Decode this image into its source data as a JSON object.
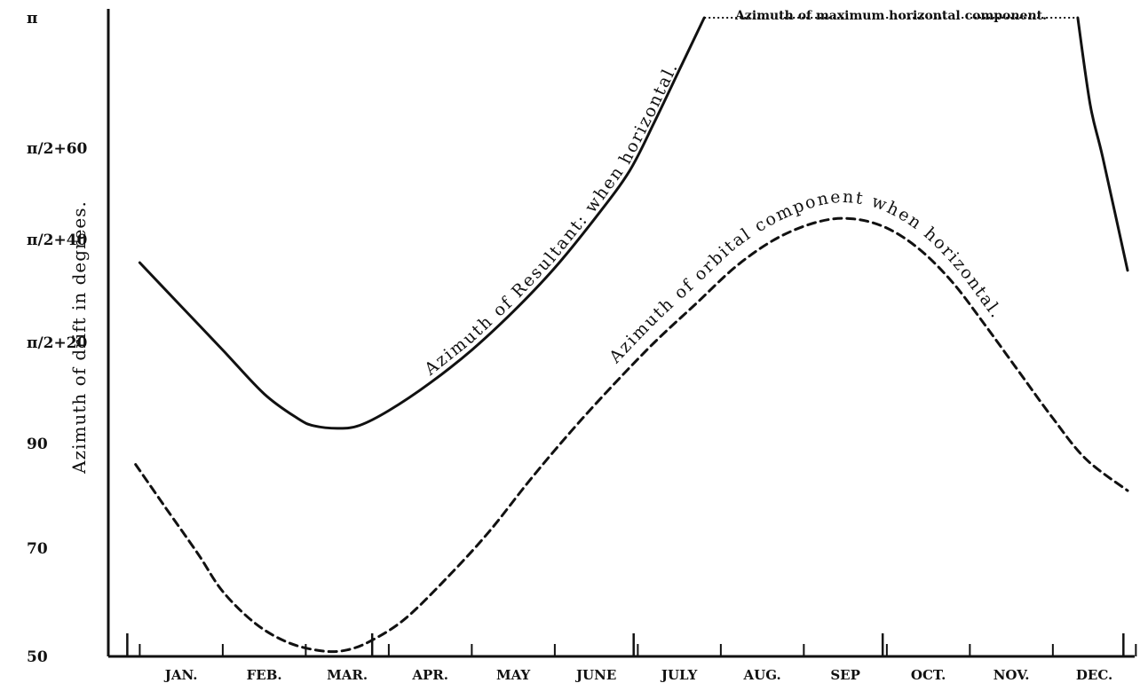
{
  "chart_data": {
    "type": "line",
    "title": "",
    "xlabel": "",
    "ylabel": "Azimuth of drift in degrees.",
    "y_ticks": [
      {
        "value": 50,
        "label": "50"
      },
      {
        "value": 70,
        "label": "70"
      },
      {
        "value": 90,
        "label": "90"
      },
      {
        "value": 110,
        "label": "π/2+20"
      },
      {
        "value": 130,
        "label": "π/2+40"
      },
      {
        "value": 150,
        "label": "π/2+60"
      },
      {
        "value": 180,
        "label": "π"
      }
    ],
    "ylim": [
      50,
      180
    ],
    "xlim": [
      0.6,
      12.9
    ],
    "months": [
      "JAN.",
      "FEB.",
      "MAR.",
      "APR.",
      "MAY",
      "JUNE",
      "JULY",
      "AUG.",
      "SEP",
      "OCT.",
      "NOV.",
      "DEC."
    ],
    "grid": false,
    "series": [
      {
        "name": "Azimuth of Resultant: when horizontal.",
        "style": "solid",
        "color": "#111111",
        "x": [
          1.0,
          1.5,
          2.0,
          2.5,
          2.9,
          3.1,
          3.4,
          3.65,
          4.0,
          4.5,
          5.0,
          5.5,
          6.0,
          6.5,
          6.9,
          7.2,
          7.5,
          7.8
        ],
        "y": [
          125.5,
          117,
          108.5,
          99.8,
          95,
          93.5,
          93,
          93.6,
          96.5,
          102,
          108.5,
          116,
          124.5,
          135,
          145,
          156,
          168,
          180
        ]
      },
      {
        "name": "Azimuth of maximum horizontal component.",
        "style": "dotted",
        "color": "#111111",
        "x": [
          7.8,
          12.3
        ],
        "y": [
          180,
          180
        ]
      },
      {
        "name": "",
        "style": "solid",
        "color": "#111111",
        "x": [
          12.3,
          12.45,
          12.6,
          12.9
        ],
        "y": [
          180,
          160,
          148,
          124
        ]
      },
      {
        "name": "Azimuth of orbital component when horizontal.",
        "style": "dashed",
        "color": "#111111",
        "x": [
          0.95,
          1.3,
          1.7,
          2.0,
          2.4,
          2.8,
          3.2,
          3.5,
          3.8,
          4.2,
          4.7,
          5.2,
          5.7,
          6.2,
          6.7,
          7.2,
          7.7,
          8.2,
          8.7,
          9.2,
          9.6,
          10.0,
          10.4,
          10.8,
          11.2,
          11.6,
          12.0,
          12.4,
          12.9
        ],
        "y": [
          86,
          78,
          69,
          62,
          56,
          52.5,
          51,
          51.2,
          53,
          57,
          64.5,
          73,
          83,
          92.5,
          101.5,
          110,
          117.5,
          125,
          130.5,
          134,
          134.5,
          132.5,
          128,
          121.5,
          113,
          104,
          95,
          87,
          81
        ]
      }
    ],
    "annotations": [
      {
        "text": "Azimuth of Resultant: when horizontal.",
        "series": 0
      },
      {
        "text": "Azimuth of orbital component when horizontal.",
        "series": 3
      },
      {
        "text": "Azimuth of maximum horizontal component.",
        "series": 1
      }
    ]
  }
}
